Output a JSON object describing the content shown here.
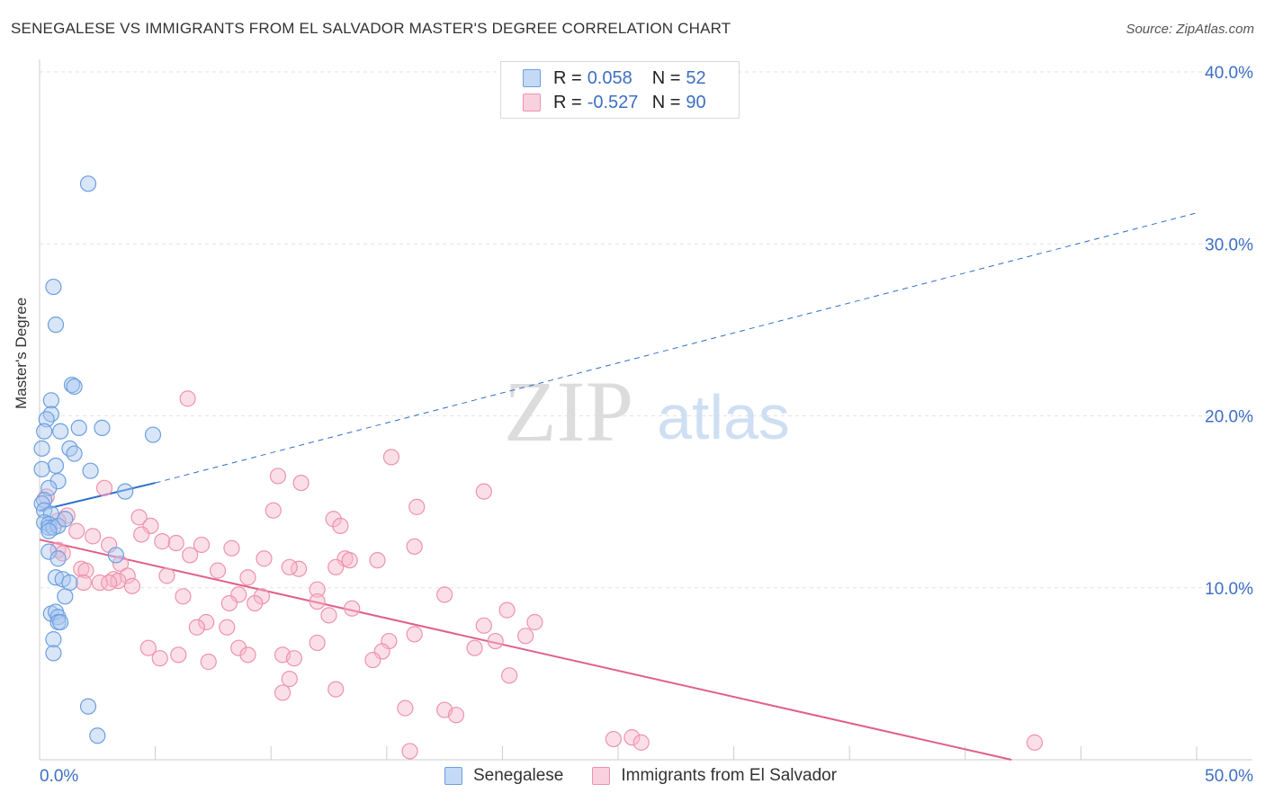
{
  "header": {
    "title": "SENEGALESE VS IMMIGRANTS FROM EL SALVADOR MASTER'S DEGREE CORRELATION CHART",
    "source": "Source: ZipAtlas.com"
  },
  "legend": {
    "rows": [
      {
        "r_label": "R =",
        "r_value": "0.058",
        "n_label": "N =",
        "n_value": "52"
      },
      {
        "r_label": "R =",
        "r_value": "-0.527",
        "n_label": "N =",
        "n_value": "90"
      }
    ],
    "series": [
      "Senegalese",
      "Immigrants from El Salvador"
    ]
  },
  "watermark": {
    "zip": "ZIP",
    "atlas": "atlas"
  },
  "colors": {
    "blue_fill": "#a9c8f0",
    "blue_stroke": "#6d9fe0",
    "blue_line": "#2f6fc9",
    "pink_fill": "#f6b8cb",
    "pink_stroke": "#ee93ad",
    "pink_line": "#e0608a",
    "axis_text": "#3d6fc4",
    "grid": "#e3e3e3"
  },
  "chart_data": {
    "type": "scatter",
    "title": "SENEGALESE VS IMMIGRANTS FROM EL SALVADOR MASTER'S DEGREE CORRELATION CHART",
    "xlabel": "",
    "ylabel": "Master's Degree",
    "xlim": [
      0,
      50
    ],
    "ylim": [
      0,
      40
    ],
    "x_tick_labels": [
      "0.0%",
      "50.0%"
    ],
    "y_ticks": [
      10,
      20,
      30,
      40
    ],
    "y_tick_labels": [
      "10.0%",
      "20.0%",
      "30.0%",
      "40.0%"
    ],
    "grid": true,
    "legend_position": "top-center",
    "series": [
      {
        "name": "Senegalese",
        "color": "blue",
        "trend": {
          "x": [
            0,
            5
          ],
          "y": [
            14.5,
            16.1
          ],
          "extended_to": [
            50,
            31.8
          ]
        },
        "points": [
          [
            2.1,
            33.5
          ],
          [
            0.6,
            27.5
          ],
          [
            0.7,
            25.3
          ],
          [
            1.4,
            21.8
          ],
          [
            1.5,
            21.7
          ],
          [
            0.5,
            20.9
          ],
          [
            0.5,
            20.1
          ],
          [
            0.3,
            19.8
          ],
          [
            2.7,
            19.3
          ],
          [
            1.7,
            19.3
          ],
          [
            0.2,
            19.1
          ],
          [
            0.9,
            19.1
          ],
          [
            4.9,
            18.9
          ],
          [
            1.3,
            18.1
          ],
          [
            1.5,
            17.8
          ],
          [
            0.1,
            18.1
          ],
          [
            0.7,
            17.1
          ],
          [
            0.1,
            16.9
          ],
          [
            2.2,
            16.8
          ],
          [
            0.8,
            16.2
          ],
          [
            3.7,
            15.6
          ],
          [
            0.4,
            15.8
          ],
          [
            0.2,
            15.1
          ],
          [
            0.1,
            14.9
          ],
          [
            0.2,
            14.5
          ],
          [
            0.5,
            14.3
          ],
          [
            0.2,
            13.8
          ],
          [
            0.4,
            13.7
          ],
          [
            0.4,
            13.5
          ],
          [
            0.6,
            13.5
          ],
          [
            0.8,
            13.6
          ],
          [
            0.4,
            13.3
          ],
          [
            1.1,
            14.0
          ],
          [
            3.3,
            11.9
          ],
          [
            0.4,
            12.1
          ],
          [
            0.8,
            11.7
          ],
          [
            0.7,
            10.6
          ],
          [
            1.0,
            10.5
          ],
          [
            1.3,
            10.3
          ],
          [
            1.1,
            9.5
          ],
          [
            0.5,
            8.5
          ],
          [
            0.7,
            8.6
          ],
          [
            0.8,
            8.3
          ],
          [
            0.8,
            8.0
          ],
          [
            0.9,
            8.0
          ],
          [
            0.6,
            7.0
          ],
          [
            0.6,
            6.2
          ],
          [
            2.1,
            3.1
          ],
          [
            2.5,
            1.4
          ]
        ]
      },
      {
        "name": "Immigrants from El Salvador",
        "color": "pink",
        "trend": {
          "x": [
            0,
            42
          ],
          "y": [
            12.8,
            0
          ]
        },
        "points": [
          [
            6.4,
            21.0
          ],
          [
            15.2,
            17.6
          ],
          [
            10.3,
            16.5
          ],
          [
            11.3,
            16.1
          ],
          [
            19.2,
            15.6
          ],
          [
            2.8,
            15.8
          ],
          [
            0.3,
            15.3
          ],
          [
            16.3,
            14.7
          ],
          [
            10.1,
            14.5
          ],
          [
            4.3,
            14.1
          ],
          [
            12.7,
            14.0
          ],
          [
            13.0,
            13.6
          ],
          [
            4.8,
            13.6
          ],
          [
            1.2,
            14.2
          ],
          [
            0.8,
            13.9
          ],
          [
            1.6,
            13.3
          ],
          [
            2.3,
            13.0
          ],
          [
            4.4,
            13.1
          ],
          [
            5.3,
            12.7
          ],
          [
            5.9,
            12.6
          ],
          [
            3.0,
            12.5
          ],
          [
            7.0,
            12.5
          ],
          [
            8.3,
            12.3
          ],
          [
            16.2,
            12.4
          ],
          [
            0.8,
            12.2
          ],
          [
            1.0,
            12.0
          ],
          [
            6.5,
            11.9
          ],
          [
            9.7,
            11.7
          ],
          [
            13.2,
            11.7
          ],
          [
            14.6,
            11.6
          ],
          [
            13.4,
            11.6
          ],
          [
            3.5,
            11.4
          ],
          [
            12.8,
            11.2
          ],
          [
            11.2,
            11.1
          ],
          [
            10.8,
            11.2
          ],
          [
            7.7,
            11.0
          ],
          [
            1.8,
            11.1
          ],
          [
            2.0,
            11.0
          ],
          [
            3.8,
            10.7
          ],
          [
            5.5,
            10.7
          ],
          [
            9.0,
            10.6
          ],
          [
            3.2,
            10.5
          ],
          [
            3.4,
            10.4
          ],
          [
            1.9,
            10.3
          ],
          [
            2.6,
            10.3
          ],
          [
            3.0,
            10.3
          ],
          [
            4.0,
            10.1
          ],
          [
            12.0,
            9.9
          ],
          [
            8.6,
            9.6
          ],
          [
            6.2,
            9.5
          ],
          [
            9.6,
            9.5
          ],
          [
            17.5,
            9.6
          ],
          [
            8.2,
            9.1
          ],
          [
            9.3,
            9.1
          ],
          [
            12.0,
            9.2
          ],
          [
            13.5,
            8.8
          ],
          [
            12.5,
            8.4
          ],
          [
            20.2,
            8.7
          ],
          [
            21.4,
            8.0
          ],
          [
            7.2,
            8.0
          ],
          [
            19.2,
            7.8
          ],
          [
            6.8,
            7.7
          ],
          [
            8.1,
            7.7
          ],
          [
            16.2,
            7.3
          ],
          [
            21.0,
            7.2
          ],
          [
            19.7,
            6.9
          ],
          [
            12.0,
            6.8
          ],
          [
            15.1,
            6.9
          ],
          [
            4.7,
            6.5
          ],
          [
            8.6,
            6.5
          ],
          [
            14.8,
            6.3
          ],
          [
            18.8,
            6.5
          ],
          [
            5.2,
            5.9
          ],
          [
            6.0,
            6.1
          ],
          [
            7.3,
            5.7
          ],
          [
            9.0,
            6.1
          ],
          [
            10.5,
            6.1
          ],
          [
            14.4,
            5.8
          ],
          [
            11.0,
            5.9
          ],
          [
            20.3,
            4.9
          ],
          [
            10.8,
            4.7
          ],
          [
            10.5,
            3.9
          ],
          [
            12.8,
            4.1
          ],
          [
            15.8,
            3.0
          ],
          [
            17.5,
            2.9
          ],
          [
            18.0,
            2.6
          ],
          [
            24.8,
            1.2
          ],
          [
            25.6,
            1.3
          ],
          [
            26.0,
            1.0
          ],
          [
            43.0,
            1.0
          ],
          [
            16.0,
            0.5
          ]
        ]
      }
    ]
  }
}
